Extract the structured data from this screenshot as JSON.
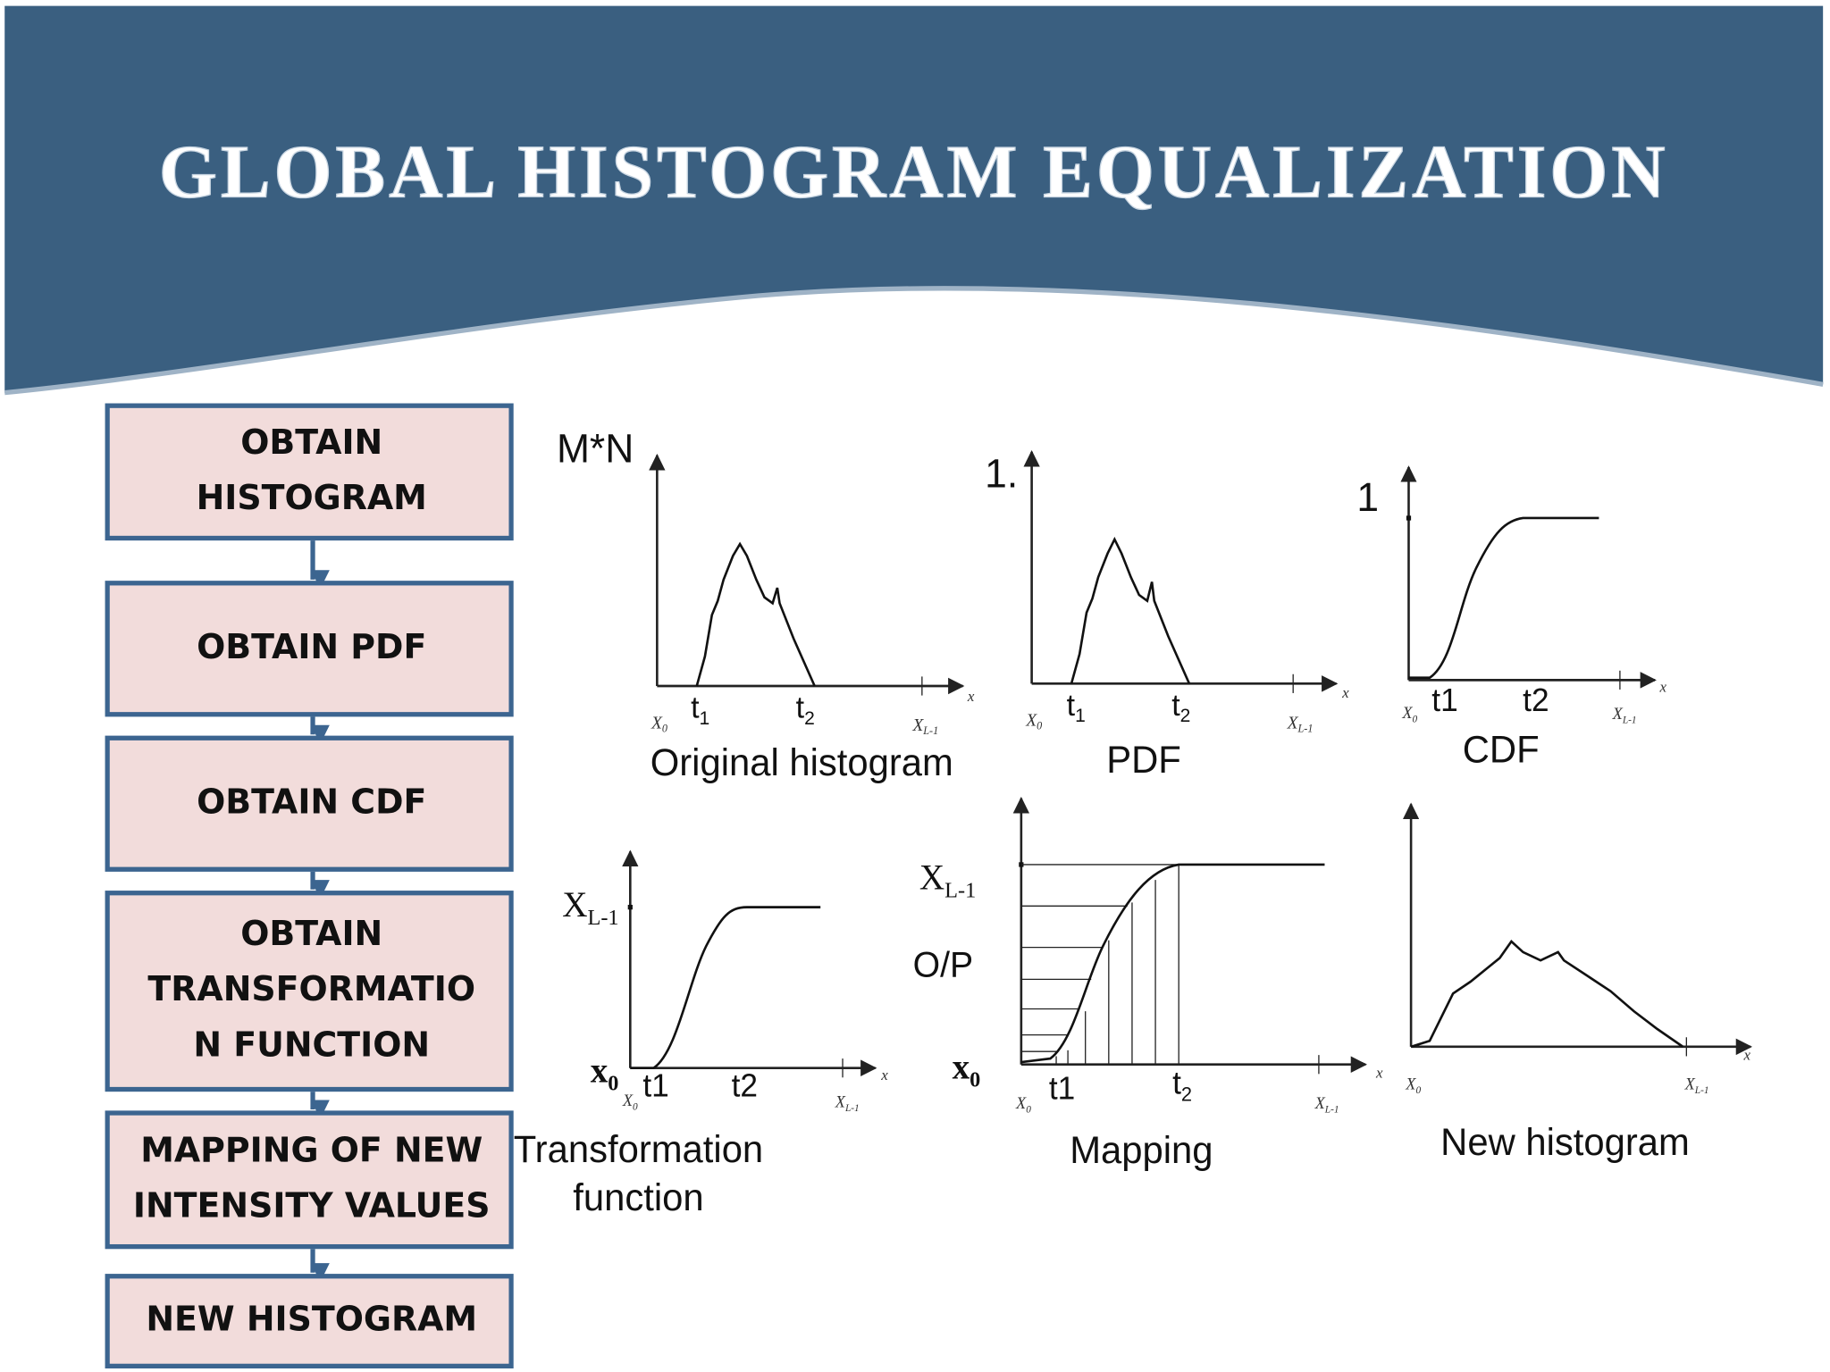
{
  "header": {
    "title": "GLOBAL HISTOGRAM EQUALIZATION"
  },
  "steps": [
    [
      "OBTAIN",
      "HISTOGRAM"
    ],
    [
      "OBTAIN PDF"
    ],
    [
      "OBTAIN CDF"
    ],
    [
      "OBTAIN",
      "TRANSFORMATIO",
      "N FUNCTION"
    ],
    [
      "MAPPING OF NEW",
      "INTENSITY VALUES"
    ],
    [
      "NEW HISTOGRAM"
    ]
  ],
  "panels": [
    {
      "y_labels": [
        "M*N"
      ],
      "x_labels": [
        {
          "t": "X",
          "sub": "0"
        },
        {
          "t": "t",
          "sub": "1"
        },
        {
          "t": "t",
          "sub": "2"
        },
        {
          "t": "X",
          "sub": "L-1"
        },
        "x"
      ],
      "caption": [
        "Original histogram"
      ]
    },
    {
      "y_labels": [
        "1."
      ],
      "x_labels": [
        {
          "t": "X",
          "sub": "0"
        },
        {
          "t": "t",
          "sub": "1"
        },
        {
          "t": "t",
          "sub": "2"
        },
        {
          "t": "X",
          "sub": "L-1"
        },
        "x"
      ],
      "caption": [
        "PDF"
      ]
    },
    {
      "y_labels": [
        "1"
      ],
      "x_labels": [
        {
          "t": "X",
          "sub": "0"
        },
        "t1",
        "t2",
        {
          "t": "X",
          "sub": "L-1"
        },
        "x"
      ],
      "caption": [
        "CDF"
      ]
    },
    {
      "y_labels": [
        {
          "t": "X",
          "sub": "L-1"
        },
        {
          "t": "x",
          "sub": "0"
        }
      ],
      "x_labels": [
        {
          "t": "X",
          "sub": "0"
        },
        "t1",
        "t2",
        {
          "t": "X",
          "sub": "L-1"
        },
        "x"
      ],
      "caption": [
        "Transformation",
        "function"
      ]
    },
    {
      "y_labels": [
        {
          "t": "X",
          "sub": "L-1"
        },
        "O/P",
        {
          "t": "x",
          "sub": "0"
        }
      ],
      "x_labels": [
        {
          "t": "X",
          "sub": "0"
        },
        "t1",
        {
          "t": "t",
          "sub": "2"
        },
        {
          "t": "X",
          "sub": "L-1"
        },
        "x"
      ],
      "caption": [
        "Mapping"
      ]
    },
    {
      "y_labels": [],
      "x_labels": [
        {
          "t": "X",
          "sub": "0"
        },
        {
          "t": "X",
          "sub": "L-1"
        },
        "x"
      ],
      "caption": [
        "New histogram"
      ]
    }
  ]
}
